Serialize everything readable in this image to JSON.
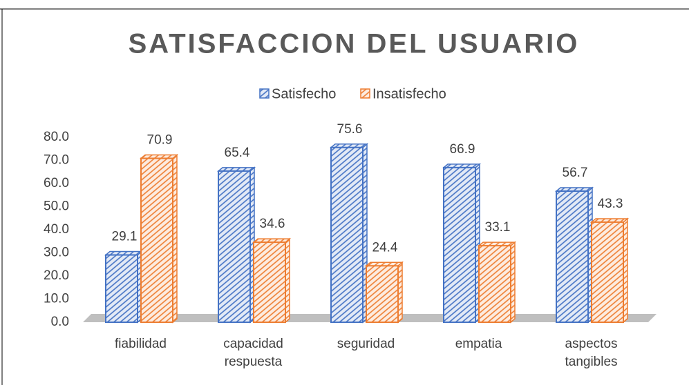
{
  "chart_data": {
    "type": "bar3d",
    "title": "SATISFACCION DEL USUARIO",
    "categories": [
      "fiabilidad",
      "capacidad respuesta",
      "seguridad",
      "empatia",
      "aspectos tangibles"
    ],
    "series": [
      {
        "name": "Satisfecho",
        "color": "#4472c4",
        "values": [
          29.1,
          65.4,
          75.6,
          66.9,
          56.7
        ]
      },
      {
        "name": "Insatisfecho",
        "color": "#ed7d31",
        "values": [
          70.9,
          34.6,
          24.4,
          33.1,
          43.3
        ]
      }
    ],
    "ylim": [
      0,
      80
    ],
    "yticks": [
      {
        "value": 0,
        "label": "0.0"
      },
      {
        "value": 10,
        "label": "10.0"
      },
      {
        "value": 20,
        "label": "20.0"
      },
      {
        "value": 30,
        "label": "30.0"
      },
      {
        "value": 40,
        "label": "40.0"
      },
      {
        "value": 50,
        "label": "50.0"
      },
      {
        "value": 60,
        "label": "60.0"
      },
      {
        "value": 70,
        "label": "70.0"
      },
      {
        "value": 80,
        "label": "80.0"
      }
    ],
    "legend": "top",
    "grid": false
  }
}
